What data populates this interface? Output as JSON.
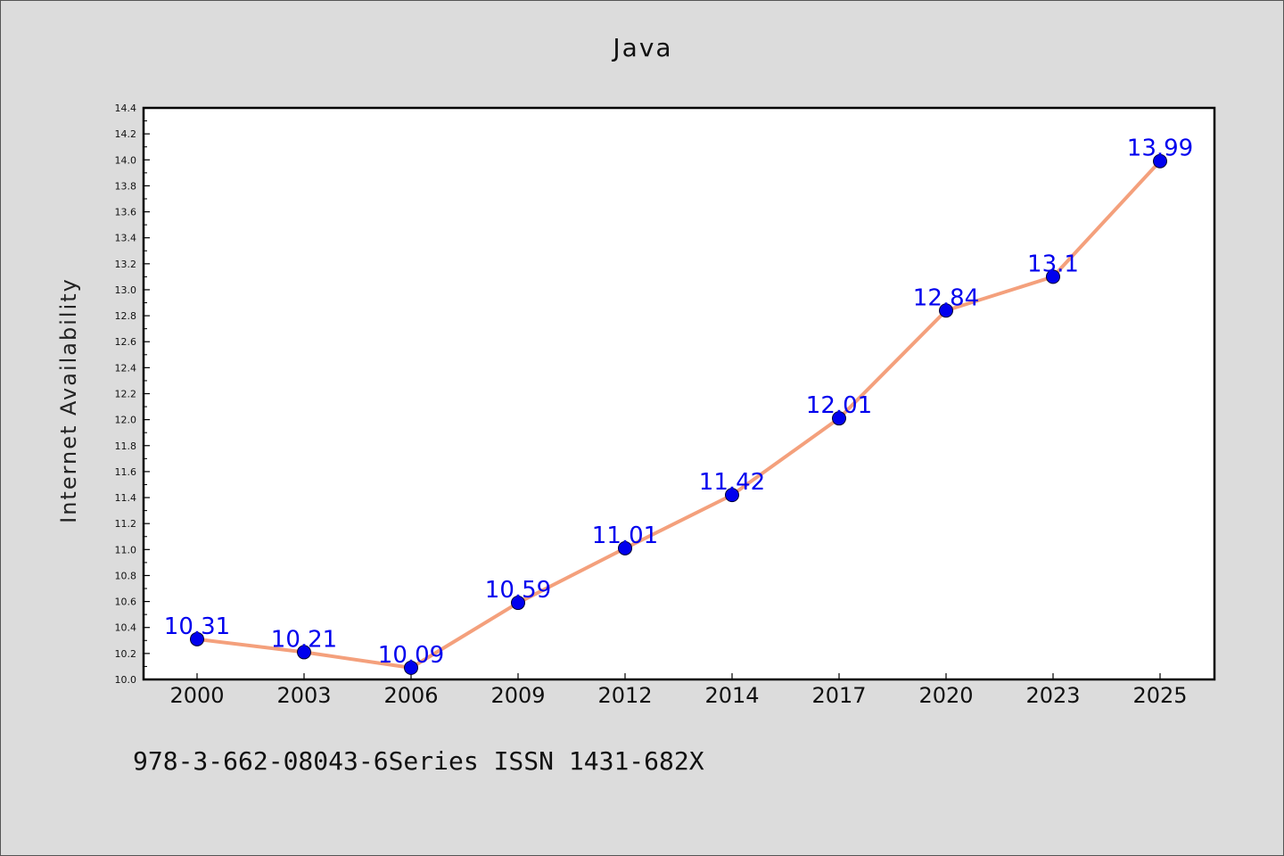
{
  "chart_data": {
    "type": "line",
    "title": "Java",
    "xlabel": "",
    "ylabel": "Internet Availability",
    "categories": [
      "2000",
      "2003",
      "2006",
      "2009",
      "2012",
      "2014",
      "2017",
      "2020",
      "2023",
      "2025"
    ],
    "series": [
      {
        "values": [
          10.31,
          10.21,
          10.09,
          10.59,
          11.01,
          11.42,
          12.01,
          12.84,
          13.1,
          13.99
        ],
        "data_labels": [
          "10.31",
          "10.21",
          "10.09",
          "10.59",
          "11.01",
          "11.42",
          "12.01",
          "12.84",
          "13.1",
          "13.99"
        ],
        "line_color": "#f4a07c",
        "marker_color": "#0000ee",
        "label_color": "#0000ee"
      }
    ],
    "ylim": [
      10.0,
      14.4
    ],
    "y_ticks": [
      "10.0",
      "10.2",
      "10.4",
      "10.6",
      "10.8",
      "11.0",
      "11.2",
      "11.4",
      "11.6",
      "11.8",
      "12.0",
      "12.2",
      "12.4",
      "12.6",
      "12.8",
      "13.0",
      "13.2",
      "13.4",
      "13.6",
      "13.8",
      "14.0",
      "14.2",
      "14.4"
    ],
    "grid": false,
    "legend": "none"
  },
  "footnote": "978-3-662-08043-6Series ISSN 1431-682X",
  "colors": {
    "background": "#dcdcdc",
    "plot_background": "#ffffff",
    "axis": "#000000"
  }
}
